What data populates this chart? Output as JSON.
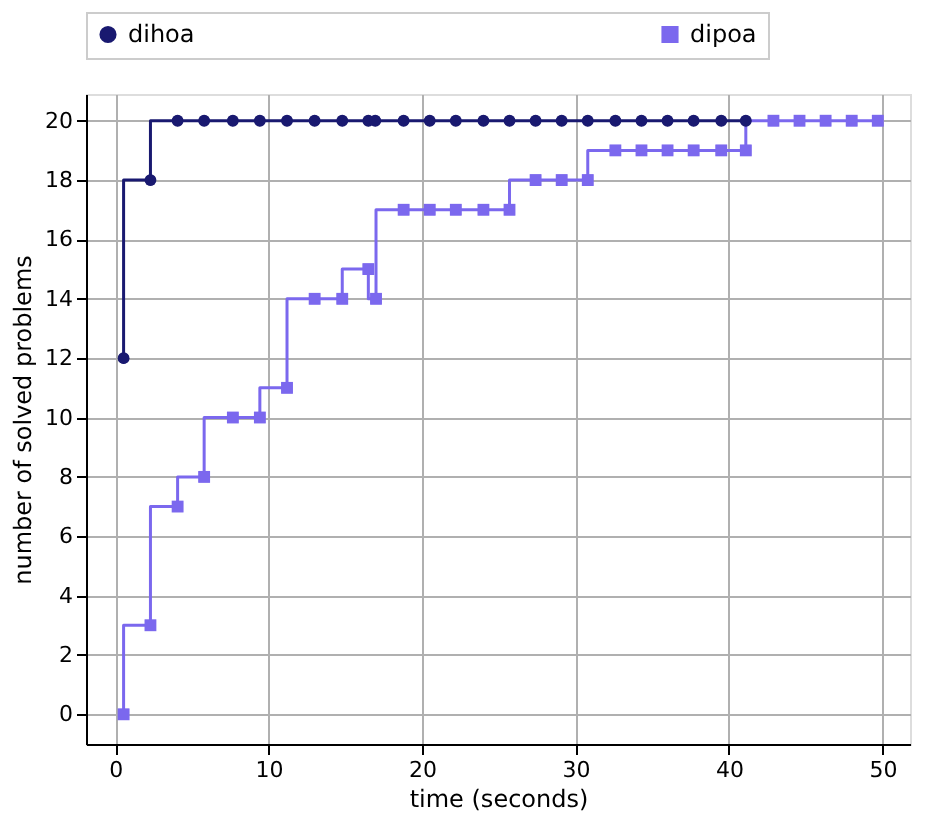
{
  "chart_data": {
    "type": "step",
    "xlabel": "time (seconds)",
    "ylabel": "number of solved problems",
    "xlim": [
      -1.9,
      51.8
    ],
    "ylim": [
      -1.0,
      20.9
    ],
    "xticks": [
      0,
      10,
      20,
      30,
      40,
      50
    ],
    "yticks": [
      0,
      2,
      4,
      6,
      8,
      10,
      12,
      14,
      16,
      18,
      20
    ],
    "grid": true,
    "legend": "top",
    "line_style": "solid",
    "series": [
      {
        "name": "dihoa",
        "color": "#191970",
        "marker": "circle",
        "x": [
          0.55,
          2.3,
          4.07,
          5.8,
          7.67,
          9.43,
          11.2,
          13.0,
          14.8,
          16.5,
          16.95,
          18.8,
          20.5,
          22.2,
          24.0,
          25.7,
          27.4,
          29.1,
          30.8,
          32.6,
          34.3,
          36.0,
          37.7,
          39.5,
          41.1
        ],
        "values": [
          12,
          18,
          20,
          20,
          20,
          20,
          20,
          20,
          20,
          20,
          20,
          20,
          20,
          20,
          20,
          20,
          20,
          20,
          20,
          20,
          20,
          20,
          20,
          20,
          20
        ]
      },
      {
        "name": "dipoa",
        "color": "#7b68ee",
        "marker": "square",
        "x": [
          0.55,
          2.3,
          4.07,
          5.8,
          7.67,
          9.43,
          11.2,
          13.0,
          14.8,
          16.5,
          17.0,
          18.8,
          20.5,
          22.2,
          24.0,
          25.7,
          27.4,
          29.1,
          30.8,
          32.6,
          34.3,
          36.0,
          37.7,
          39.5,
          41.1,
          42.9,
          44.6,
          46.3,
          48.0,
          49.7
        ],
        "values": [
          0,
          3,
          7,
          8,
          10,
          10,
          11,
          14,
          14,
          15,
          14,
          17,
          17,
          17,
          17,
          17,
          18,
          18,
          18,
          19,
          19,
          19,
          19,
          19,
          19,
          20,
          20,
          20,
          20,
          20
        ]
      }
    ]
  }
}
